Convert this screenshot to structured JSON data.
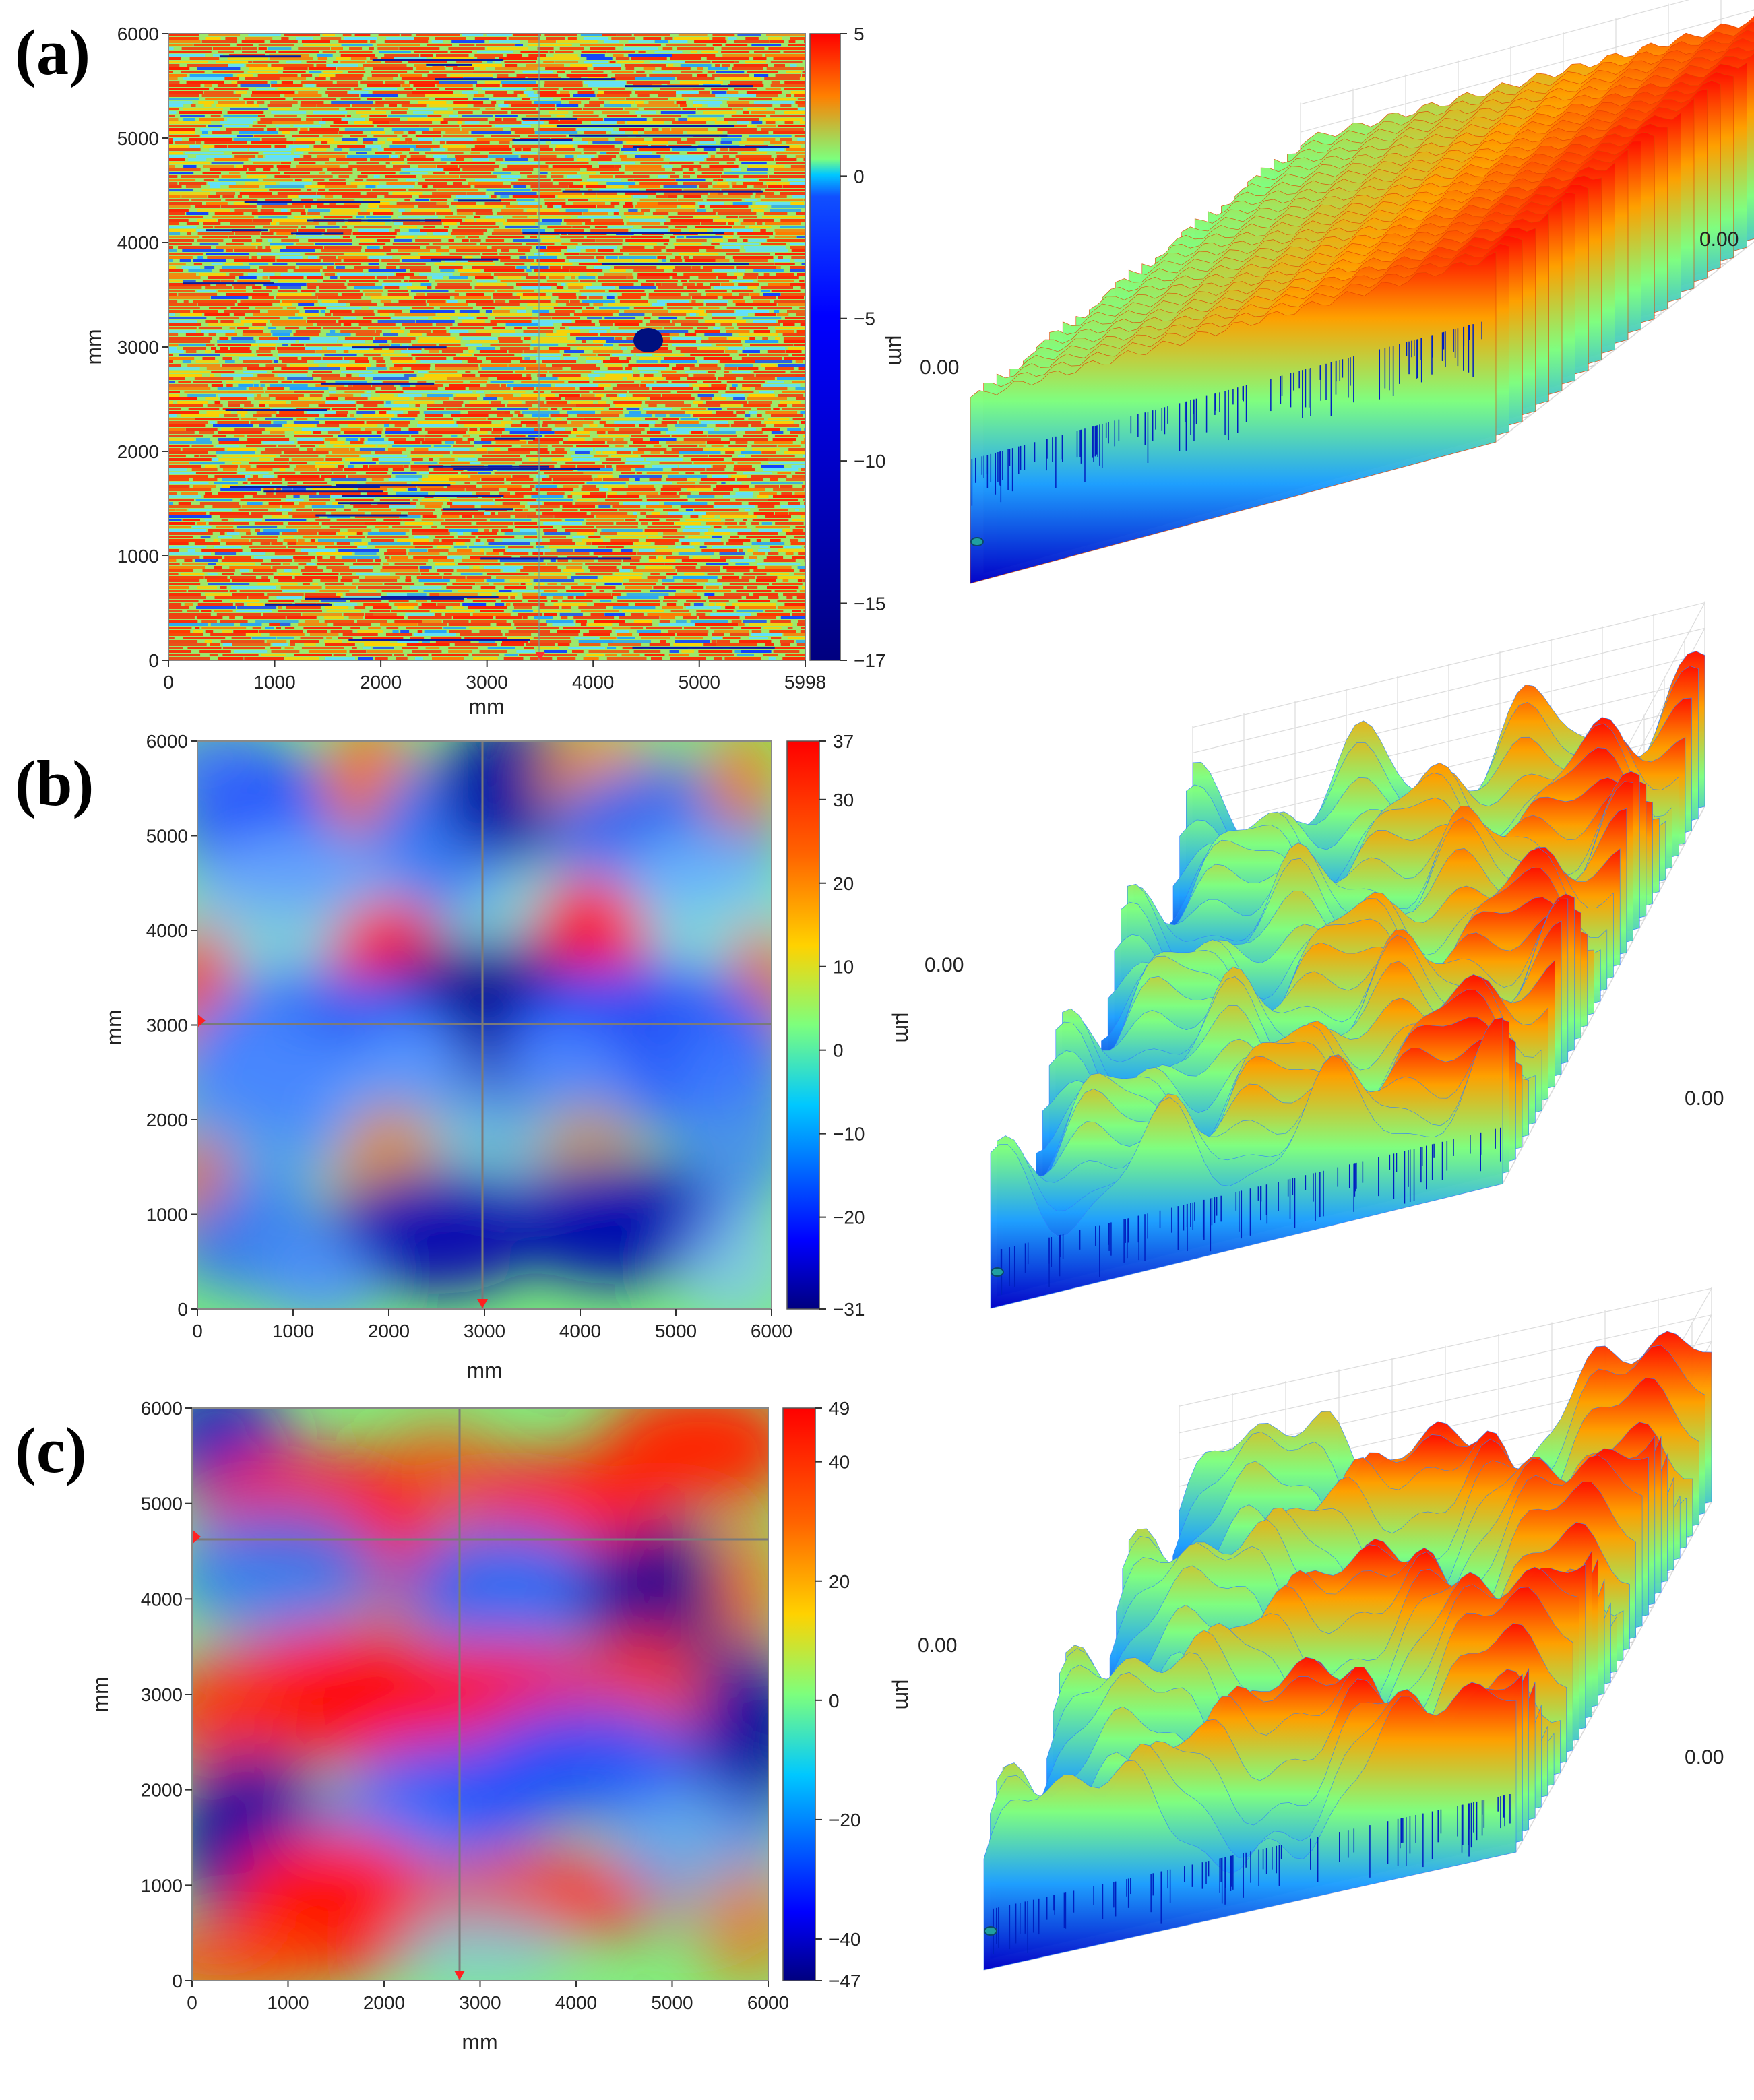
{
  "chart_data": [
    {
      "type": "heatmap",
      "panel_label": "(a)",
      "xlabel": "mm",
      "ylabel": "mm",
      "xlim": [
        0,
        5998
      ],
      "ylim": [
        0,
        6000
      ],
      "x_ticks": [
        "0",
        "1000",
        "2000",
        "3000",
        "4000",
        "5000",
        "5998"
      ],
      "y_ticks": [
        "0",
        "1000",
        "2000",
        "3000",
        "4000",
        "5000",
        "6000"
      ],
      "colorbar": {
        "label": "µm",
        "min": -17,
        "max": 5,
        "ticks": [
          "5",
          "0",
          "−5",
          "−10",
          "−15",
          "−17"
        ],
        "tick_values": [
          5,
          0,
          -5,
          -10,
          -15,
          -17
        ]
      },
      "surface_labels": [
        "0.00",
        "0.00"
      ]
    },
    {
      "type": "heatmap",
      "panel_label": "(b)",
      "xlabel": "mm",
      "ylabel": "mm",
      "xlim": [
        0,
        6000
      ],
      "ylim": [
        0,
        6000
      ],
      "x_ticks": [
        "0",
        "1000",
        "2000",
        "3000",
        "4000",
        "5000",
        "6000"
      ],
      "y_ticks": [
        "0",
        "1000",
        "2000",
        "3000",
        "4000",
        "5000",
        "6000"
      ],
      "colorbar": {
        "label": "µm",
        "min": -31,
        "max": 37,
        "ticks": [
          "37",
          "30",
          "20",
          "10",
          "0",
          "−10",
          "−20",
          "−31"
        ],
        "tick_values": [
          37,
          30,
          20,
          10,
          0,
          -10,
          -20,
          -31
        ]
      },
      "surface_labels": [
        "0.00",
        "0.00"
      ]
    },
    {
      "type": "heatmap",
      "panel_label": "(c)",
      "xlabel": "mm",
      "ylabel": "mm",
      "xlim": [
        0,
        6000
      ],
      "ylim": [
        0,
        6000
      ],
      "x_ticks": [
        "0",
        "1000",
        "2000",
        "3000",
        "4000",
        "5000",
        "6000"
      ],
      "y_ticks": [
        "0",
        "1000",
        "2000",
        "3000",
        "4000",
        "5000",
        "6000"
      ],
      "colorbar": {
        "label": "µm",
        "min": -47,
        "max": 49,
        "ticks": [
          "49",
          "40",
          "20",
          "0",
          "−20",
          "−40",
          "−47"
        ],
        "tick_values": [
          49,
          40,
          20,
          0,
          -20,
          -40,
          -47
        ]
      },
      "surface_labels": [
        "0.00",
        "0.00"
      ]
    }
  ]
}
